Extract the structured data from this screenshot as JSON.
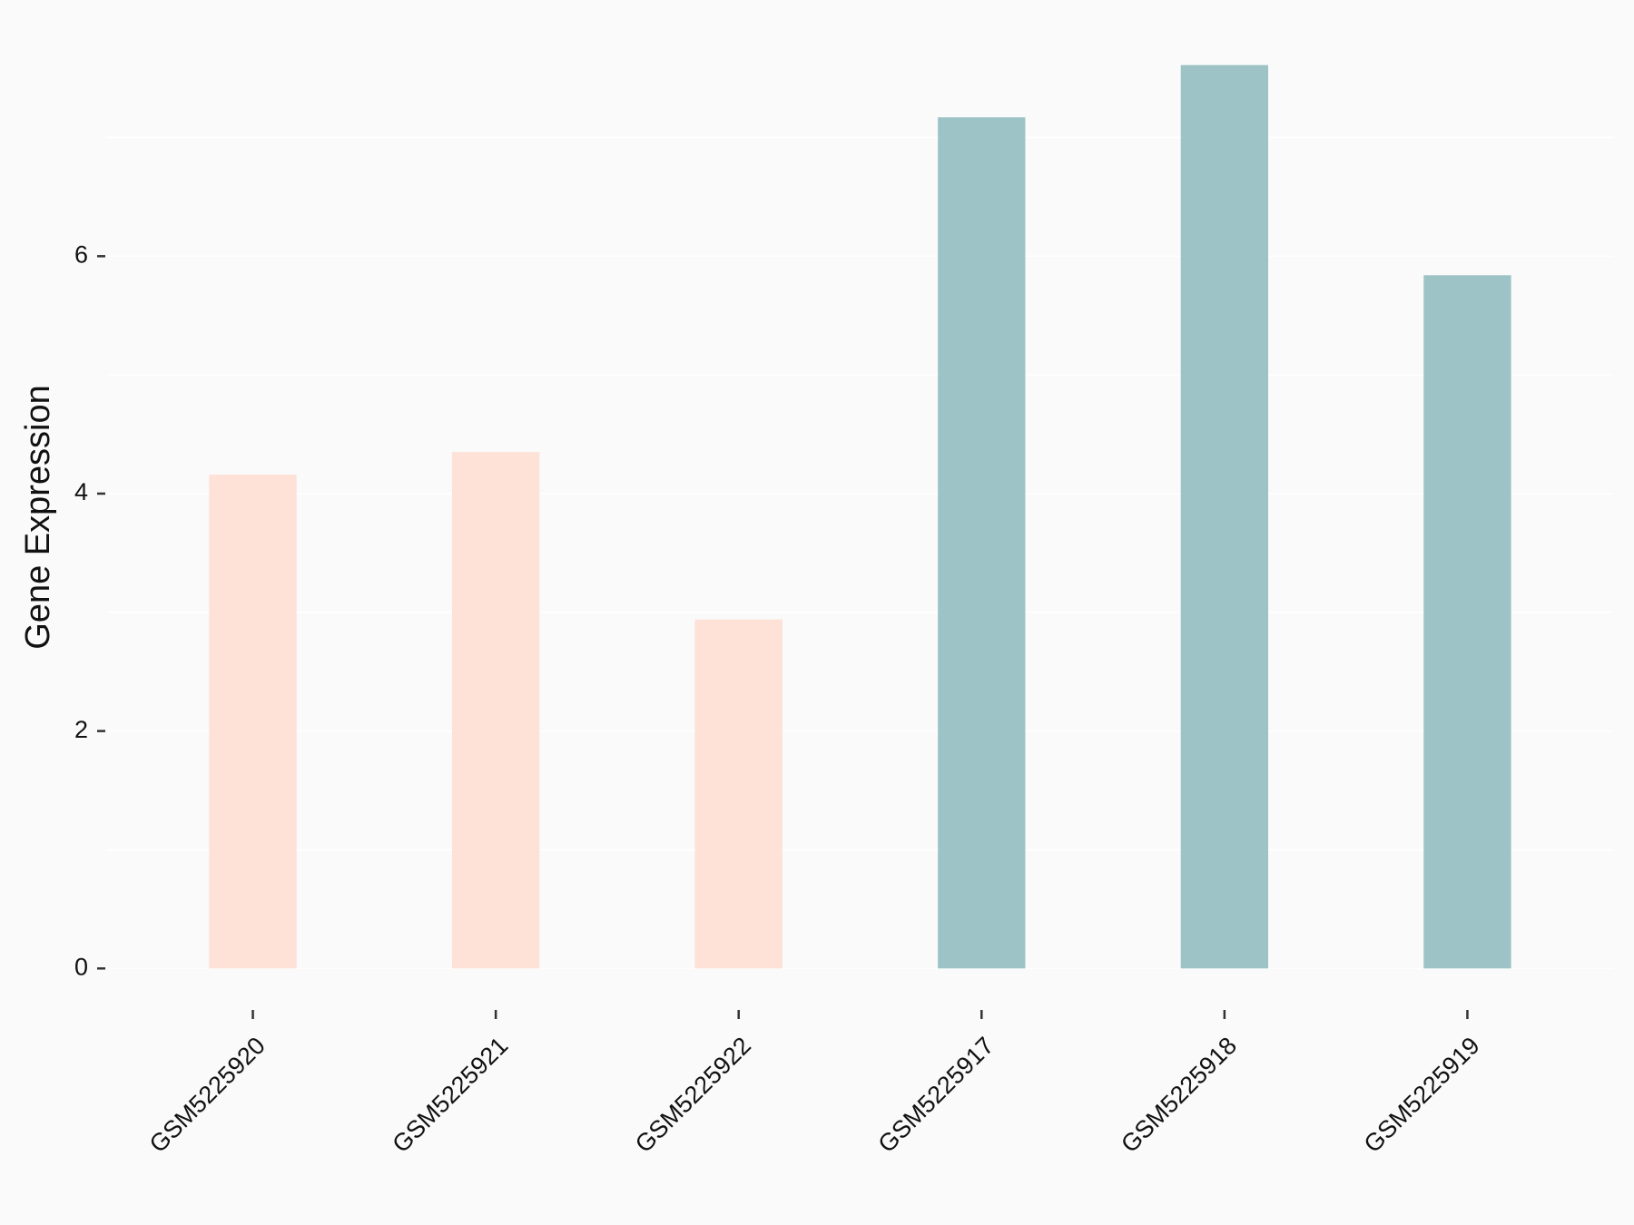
{
  "chart_data": {
    "type": "bar",
    "y_label": "Gene Expression",
    "categories": [
      "GSM5225920",
      "GSM5225921",
      "GSM5225922",
      "GSM5225917",
      "GSM5225918",
      "GSM5225919"
    ],
    "values": [
      4.16,
      4.35,
      2.94,
      7.17,
      7.61,
      5.84
    ],
    "colors": [
      "#fee1d7",
      "#fee1d7",
      "#fee1d7",
      "#9dc3c6",
      "#9dc3c6",
      "#9dc3c6"
    ],
    "ylim": [
      -0.38,
      7.99
    ],
    "yticks": [
      0,
      2,
      4,
      6
    ],
    "grid": true
  }
}
